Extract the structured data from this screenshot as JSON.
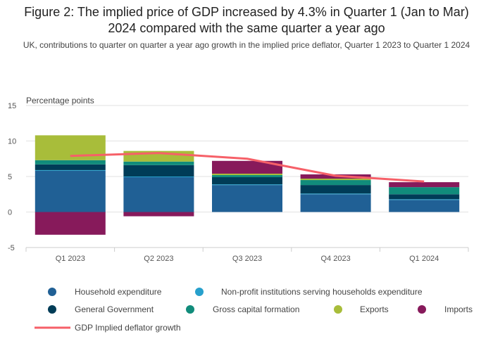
{
  "title": "Figure 2: The implied price of GDP increased by 4.3% in Quarter 1 (Jan to Mar) 2024 compared with the same quarter a year ago",
  "subtitle": "UK, contributions to quarter on quarter a year ago growth in the implied price deflator, Quarter 1 2023 to Quarter 1 2024",
  "chart_data": {
    "type": "bar",
    "stacked": true,
    "ylabel": "Percentage points",
    "ylim": [
      -5,
      15
    ],
    "yticks": [
      "15",
      "10",
      "5",
      "0",
      "-5"
    ],
    "grid": true,
    "categories": [
      "Q1 2023",
      "Q2 2023",
      "Q3 2023",
      "Q4 2023",
      "Q1 2024"
    ],
    "series": [
      {
        "name": "Household expenditure",
        "color": "#206095",
        "values": [
          5.8,
          4.9,
          3.8,
          2.5,
          1.7
        ]
      },
      {
        "name": "Non-profit institutions serving households expenditure",
        "color": "#27a0cc",
        "values": [
          0.1,
          0.1,
          0.1,
          0.1,
          0.1
        ]
      },
      {
        "name": "General Government",
        "color": "#003c57",
        "values": [
          0.8,
          1.6,
          1.0,
          1.2,
          0.7
        ]
      },
      {
        "name": "Gross capital formation",
        "color": "#118c7b",
        "values": [
          0.6,
          0.5,
          0.3,
          0.7,
          1.0
        ]
      },
      {
        "name": "Exports",
        "color": "#a8bd3a",
        "values": [
          3.5,
          1.5,
          0.2,
          0.2,
          0.0
        ]
      },
      {
        "name": "Imports",
        "color": "#871a5b",
        "values": [
          -3.2,
          -0.6,
          1.8,
          0.6,
          0.7
        ]
      }
    ],
    "line": {
      "name": "GDP Implied deflator growth",
      "color": "#f66068",
      "values": [
        7.9,
        8.3,
        7.5,
        5.1,
        4.3
      ]
    },
    "legend_position": "bottom"
  }
}
